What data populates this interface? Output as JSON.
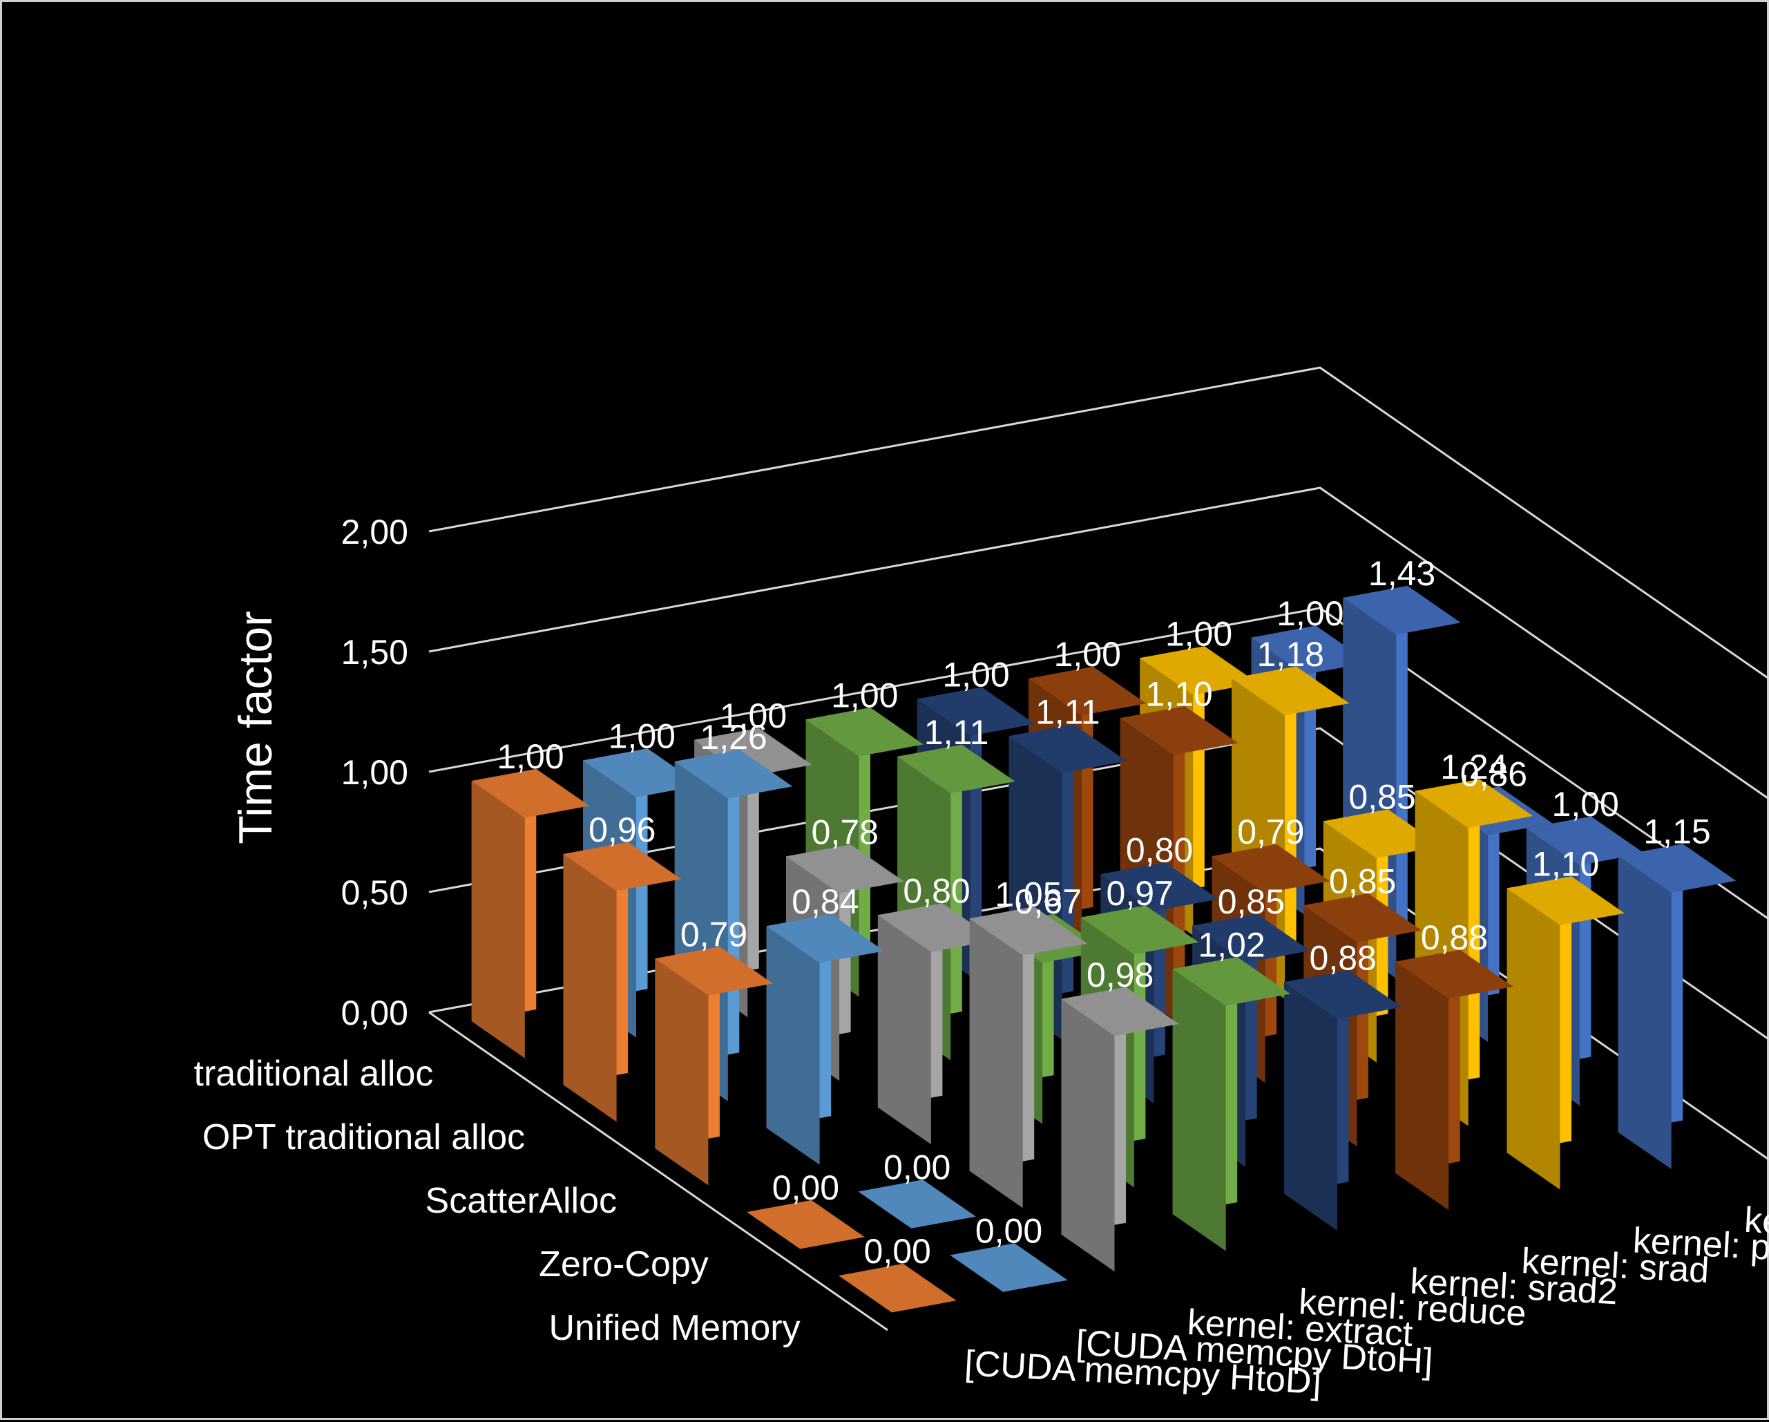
{
  "chart_data": {
    "type": "bar",
    "subtype": "3d-column",
    "title": "",
    "ylabel": "Time factor",
    "ylim": [
      0,
      2
    ],
    "yticks": [
      "0,00",
      "0,50",
      "1,00",
      "1,50",
      "2,00"
    ],
    "y_values": [
      0,
      0.5,
      1,
      1.5,
      2
    ],
    "grid": true,
    "categories": [
      "traditional alloc",
      "OPT traditional alloc",
      "ScatterAlloc",
      "Zero-Copy",
      "Unified Memory"
    ],
    "series": [
      {
        "name": "kernel: compress",
        "color": "#4472C4",
        "values": [
          1.0,
          1.43,
          0.86,
          1.0,
          1.15
        ]
      },
      {
        "name": "kernel: prepare",
        "color": "#FFC000",
        "values": [
          1.0,
          1.18,
          0.85,
          1.24,
          1.1
        ]
      },
      {
        "name": "kernel: srad",
        "color": "#9E480E",
        "values": [
          1.0,
          1.1,
          0.79,
          0.85,
          0.88
        ]
      },
      {
        "name": "kernel: srad2",
        "color": "#264478",
        "values": [
          1.0,
          1.11,
          0.8,
          0.85,
          0.88
        ]
      },
      {
        "name": "kernel: reduce",
        "color": "#70AD47",
        "values": [
          1.0,
          1.11,
          0.67,
          0.97,
          1.02
        ]
      },
      {
        "name": "kernel: extract",
        "color": "#A5A5A5",
        "values": [
          1.0,
          0.78,
          0.8,
          1.05,
          0.98
        ]
      },
      {
        "name": "[CUDA memcpy DtoH]",
        "color": "#5B9BD5",
        "values": [
          1.0,
          1.26,
          0.84,
          0.0,
          0.0
        ]
      },
      {
        "name": "[CUDA memcpy HtoD]",
        "color": "#ED7D31",
        "values": [
          1.0,
          0.96,
          0.79,
          0.0,
          0.0
        ]
      }
    ],
    "data_labels": {
      "kernel: compress": [
        "1,00",
        "1,43",
        "0,86",
        "1,00",
        "1,15"
      ],
      "kernel: prepare": [
        "1,00",
        "1,18",
        "0,85",
        "1,24",
        "1,10"
      ],
      "kernel: srad": [
        "1,00",
        "1,10",
        "0,79",
        "0,85",
        "0,88"
      ],
      "kernel: srad2": [
        "1,00",
        "1,11",
        "0,80",
        "0,85",
        "0,88"
      ],
      "kernel: reduce": [
        "1,00",
        "1,11",
        "0,67",
        "0,97",
        "1,02"
      ],
      "kernel: extract": [
        "1,00",
        "0,78",
        "0,80",
        "1,05",
        "0,98"
      ],
      "[CUDA memcpy DtoH]": [
        "1,00",
        "1,26",
        "0,84",
        "0,00",
        "0,00"
      ],
      "[CUDA memcpy HtoD]": [
        "1,00",
        "0,96",
        "0,79",
        "0,00",
        "0,00"
      ]
    }
  }
}
